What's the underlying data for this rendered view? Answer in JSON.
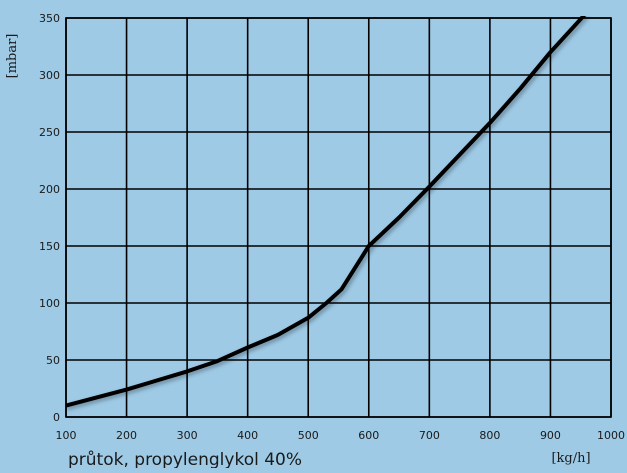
{
  "chart_data": {
    "type": "line",
    "title": "",
    "xlabel": "[kg/h]",
    "ylabel": "[mbar]",
    "caption": "průtok, propylenglykol 40%",
    "xlim": [
      100,
      1000
    ],
    "ylim": [
      0,
      350
    ],
    "x_ticks": [
      100,
      200,
      300,
      400,
      500,
      600,
      700,
      800,
      900,
      1000
    ],
    "y_ticks": [
      0,
      50,
      100,
      150,
      200,
      250,
      300,
      350
    ],
    "grid": true,
    "legend": "none",
    "series": [
      {
        "x": [
          100,
          150,
          200,
          250,
          300,
          350,
          400,
          450,
          500,
          530,
          555,
          600,
          650,
          700,
          750,
          800,
          850,
          900,
          955
        ],
        "y": [
          10,
          17,
          24,
          32,
          40,
          49,
          61,
          72,
          87,
          100,
          112,
          150,
          175,
          202,
          230,
          258,
          288,
          320,
          352
        ]
      }
    ]
  },
  "colors": {
    "background": "#9ecae6",
    "grid": "#000000",
    "line": "#000000",
    "text": "#1a1a1a"
  }
}
